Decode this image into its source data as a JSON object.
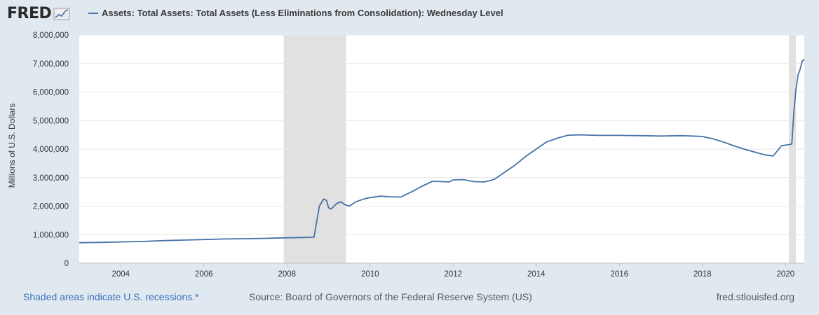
{
  "brand": {
    "logo_text": "FRED",
    "logo_icon": "line-graph-icon"
  },
  "legend": {
    "label": "Assets: Total Assets: Total Assets (Less Eliminations from Consolidation): Wednesday Level"
  },
  "footer": {
    "recession_note": "Shaded areas indicate U.S. recessions.*",
    "source": "Source: Board of Governors of the Federal Reserve System (US)",
    "site": "fred.stlouisfed.org"
  },
  "colors": {
    "series": "#4572a7",
    "recession": "#e1e1e1",
    "background": "#e1e9f0",
    "plot": "#ffffff"
  },
  "chart_data": {
    "type": "line",
    "ylabel": "Millions of U.S. Dollars",
    "xlim": [
      2003.0,
      2020.45
    ],
    "ylim": [
      0,
      8000000
    ],
    "grid": true,
    "legend_position": "top-left",
    "x_ticks": [
      {
        "value": 2004,
        "label": "2004"
      },
      {
        "value": 2006,
        "label": "2006"
      },
      {
        "value": 2008,
        "label": "2008"
      },
      {
        "value": 2010,
        "label": "2010"
      },
      {
        "value": 2012,
        "label": "2012"
      },
      {
        "value": 2014,
        "label": "2014"
      },
      {
        "value": 2016,
        "label": "2016"
      },
      {
        "value": 2018,
        "label": "2018"
      },
      {
        "value": 2020,
        "label": "2020"
      }
    ],
    "y_ticks": [
      {
        "value": 0,
        "label": "0"
      },
      {
        "value": 1000000,
        "label": "1,000,000"
      },
      {
        "value": 2000000,
        "label": "2,000,000"
      },
      {
        "value": 3000000,
        "label": "3,000,000"
      },
      {
        "value": 4000000,
        "label": "4,000,000"
      },
      {
        "value": 5000000,
        "label": "5,000,000"
      },
      {
        "value": 6000000,
        "label": "6,000,000"
      },
      {
        "value": 7000000,
        "label": "7,000,000"
      },
      {
        "value": 8000000,
        "label": "8,000,000"
      }
    ],
    "recessions": [
      {
        "start": 2007.92,
        "end": 2009.42
      },
      {
        "start": 2020.08,
        "end": 2020.25
      }
    ],
    "series": [
      {
        "name": "Assets: Total Assets: Total Assets (Less Eliminations from Consolidation): Wednesday Level",
        "color": "#4572a7",
        "x": [
          2003.0,
          2003.5,
          2004.0,
          2004.5,
          2005.0,
          2005.5,
          2006.0,
          2006.5,
          2007.0,
          2007.5,
          2008.0,
          2008.4,
          2008.65,
          2008.72,
          2008.78,
          2008.88,
          2008.95,
          2009.0,
          2009.05,
          2009.1,
          2009.2,
          2009.3,
          2009.4,
          2009.5,
          2009.55,
          2009.65,
          2009.75,
          2009.85,
          2010.0,
          2010.25,
          2010.5,
          2010.75,
          2010.85,
          2011.0,
          2011.25,
          2011.5,
          2011.75,
          2011.9,
          2012.0,
          2012.25,
          2012.5,
          2012.75,
          2012.9,
          2013.0,
          2013.25,
          2013.5,
          2013.75,
          2014.0,
          2014.25,
          2014.5,
          2014.75,
          2015.0,
          2015.5,
          2016.0,
          2016.5,
          2017.0,
          2017.5,
          2017.9,
          2018.0,
          2018.25,
          2018.5,
          2018.75,
          2019.0,
          2019.25,
          2019.5,
          2019.7,
          2019.85,
          2019.9,
          2020.05,
          2020.15,
          2020.2,
          2020.25,
          2020.3,
          2020.35,
          2020.4,
          2020.45
        ],
        "values": [
          720000,
          730000,
          745000,
          760000,
          790000,
          810000,
          830000,
          850000,
          860000,
          870000,
          890000,
          900000,
          910000,
          1500000,
          2000000,
          2250000,
          2200000,
          1950000,
          1900000,
          1950000,
          2100000,
          2150000,
          2050000,
          2000000,
          2050000,
          2150000,
          2200000,
          2250000,
          2300000,
          2350000,
          2330000,
          2320000,
          2400000,
          2500000,
          2700000,
          2870000,
          2860000,
          2850000,
          2920000,
          2930000,
          2860000,
          2850000,
          2900000,
          2950000,
          3200000,
          3450000,
          3750000,
          4000000,
          4250000,
          4380000,
          4480000,
          4500000,
          4480000,
          4480000,
          4470000,
          4460000,
          4470000,
          4450000,
          4440000,
          4360000,
          4250000,
          4120000,
          4000000,
          3900000,
          3800000,
          3760000,
          4020000,
          4120000,
          4150000,
          4180000,
          5300000,
          6100000,
          6600000,
          6800000,
          7080000,
          7150000
        ]
      }
    ]
  }
}
